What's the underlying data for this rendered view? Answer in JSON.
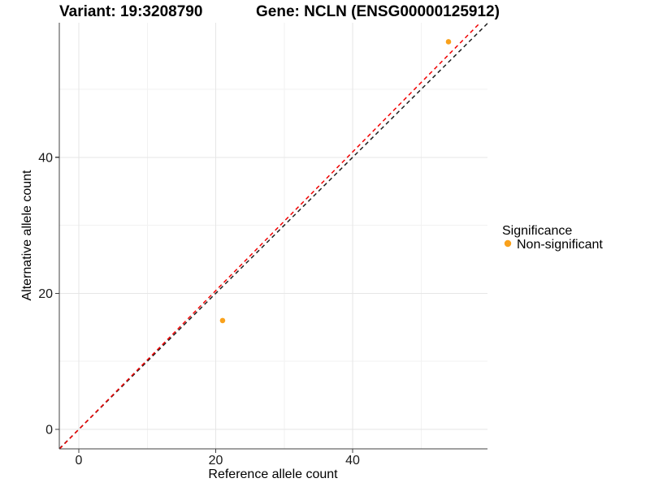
{
  "page": {
    "background": "#FFFFFF"
  },
  "titles": {
    "left": "Variant: 19:3208790",
    "right": "Gene: NCLN (ENSG00000125912)"
  },
  "chart_data": {
    "type": "scatter",
    "xlabel": "Reference allele count",
    "ylabel": "Alternative allele count",
    "xlim": [
      -2.85,
      59.7
    ],
    "ylim": [
      -2.87,
      59.8
    ],
    "x_breaks": [
      0,
      20,
      40
    ],
    "y_breaks": [
      0,
      20,
      40
    ],
    "x_minor_breaks": [
      10,
      30,
      50
    ],
    "y_minor_breaks": [
      10,
      30,
      50
    ],
    "grid": true,
    "series": [
      {
        "name": "Non-significant",
        "color": "#F9A11B",
        "points": [
          {
            "x": 21,
            "y": 16
          },
          {
            "x": 54,
            "y": 57
          }
        ]
      }
    ],
    "reference_lines": [
      {
        "name": "identity",
        "slope": 1.0,
        "intercept": 0,
        "color": "#1F1F1F",
        "style": "dashed"
      },
      {
        "name": "fit",
        "slope": 1.02,
        "intercept": 0,
        "color": "#F00000",
        "style": "dashed"
      }
    ],
    "legend": {
      "title": "Significance",
      "position": "right",
      "items": [
        {
          "label": "Non-significant",
          "color": "#F9A11B"
        }
      ]
    }
  },
  "colors": {
    "axis_line": "#404040",
    "tick_label": "#1A1A1A",
    "grid_major": "#E6E6E6",
    "grid_minor": "#F2F2F2",
    "title_text": "#000000"
  }
}
